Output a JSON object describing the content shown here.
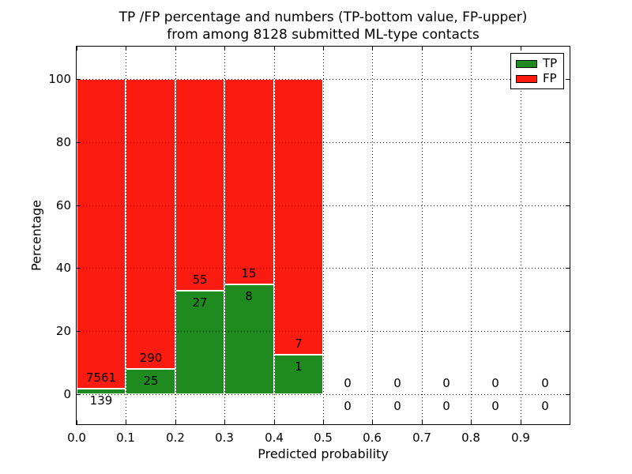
{
  "header": {
    "title_line1": "TP /FP percentage and numbers (TP-bottom value, FP-upper)",
    "title_line2": "from among 8128 submitted ML-type contacts"
  },
  "colors": {
    "tp_green": "#1f8a1f",
    "fp_red": "#fb1b10",
    "axis": "#000000",
    "background": "#ffffff"
  },
  "chart_data": {
    "type": "bar",
    "stacked": true,
    "title": "TP /FP percentage and numbers (TP-bottom value, FP-upper) from among 8128 submitted ML-type contacts",
    "xlabel": "Predicted probability",
    "ylabel": "Percentage",
    "xlim": [
      0.0,
      1.0
    ],
    "ylim": [
      -9.5,
      110.3
    ],
    "grid": "dotted",
    "x_ticks": [
      0.0,
      0.1,
      0.2,
      0.3,
      0.4,
      0.5,
      0.6,
      0.7,
      0.8,
      0.9
    ],
    "x_tick_labels": [
      "0.0",
      "0.1",
      "0.2",
      "0.3",
      "0.4",
      "0.5",
      "0.6",
      "0.7",
      "0.8",
      "0.9"
    ],
    "y_ticks": [
      0,
      20,
      40,
      60,
      80,
      100
    ],
    "y_tick_labels": [
      "0",
      "20",
      "40",
      "60",
      "80",
      "100"
    ],
    "total_contacts": 8128,
    "legend": {
      "position": "upper-right",
      "items": [
        {
          "label": "TP",
          "color": "#1f8a1f"
        },
        {
          "label": "FP",
          "color": "#fb1b10"
        }
      ]
    },
    "bins": [
      {
        "x0": 0.0,
        "x1": 0.1,
        "tp": 139,
        "fp": 7561,
        "tp_pct": 1.81,
        "fp_pct": 98.19
      },
      {
        "x0": 0.1,
        "x1": 0.2,
        "tp": 25,
        "fp": 290,
        "tp_pct": 7.94,
        "fp_pct": 92.06
      },
      {
        "x0": 0.2,
        "x1": 0.3,
        "tp": 27,
        "fp": 55,
        "tp_pct": 32.93,
        "fp_pct": 67.07
      },
      {
        "x0": 0.3,
        "x1": 0.4,
        "tp": 8,
        "fp": 15,
        "tp_pct": 34.78,
        "fp_pct": 65.22
      },
      {
        "x0": 0.4,
        "x1": 0.5,
        "tp": 1,
        "fp": 7,
        "tp_pct": 12.5,
        "fp_pct": 87.5
      },
      {
        "x0": 0.5,
        "x1": 0.6,
        "tp": 0,
        "fp": 0,
        "tp_pct": 0,
        "fp_pct": 0
      },
      {
        "x0": 0.6,
        "x1": 0.7,
        "tp": 0,
        "fp": 0,
        "tp_pct": 0,
        "fp_pct": 0
      },
      {
        "x0": 0.7,
        "x1": 0.8,
        "tp": 0,
        "fp": 0,
        "tp_pct": 0,
        "fp_pct": 0
      },
      {
        "x0": 0.8,
        "x1": 0.9,
        "tp": 0,
        "fp": 0,
        "tp_pct": 0,
        "fp_pct": 0
      },
      {
        "x0": 0.9,
        "x1": 1.0,
        "tp": 0,
        "fp": 0,
        "tp_pct": 0,
        "fp_pct": 0
      }
    ]
  }
}
